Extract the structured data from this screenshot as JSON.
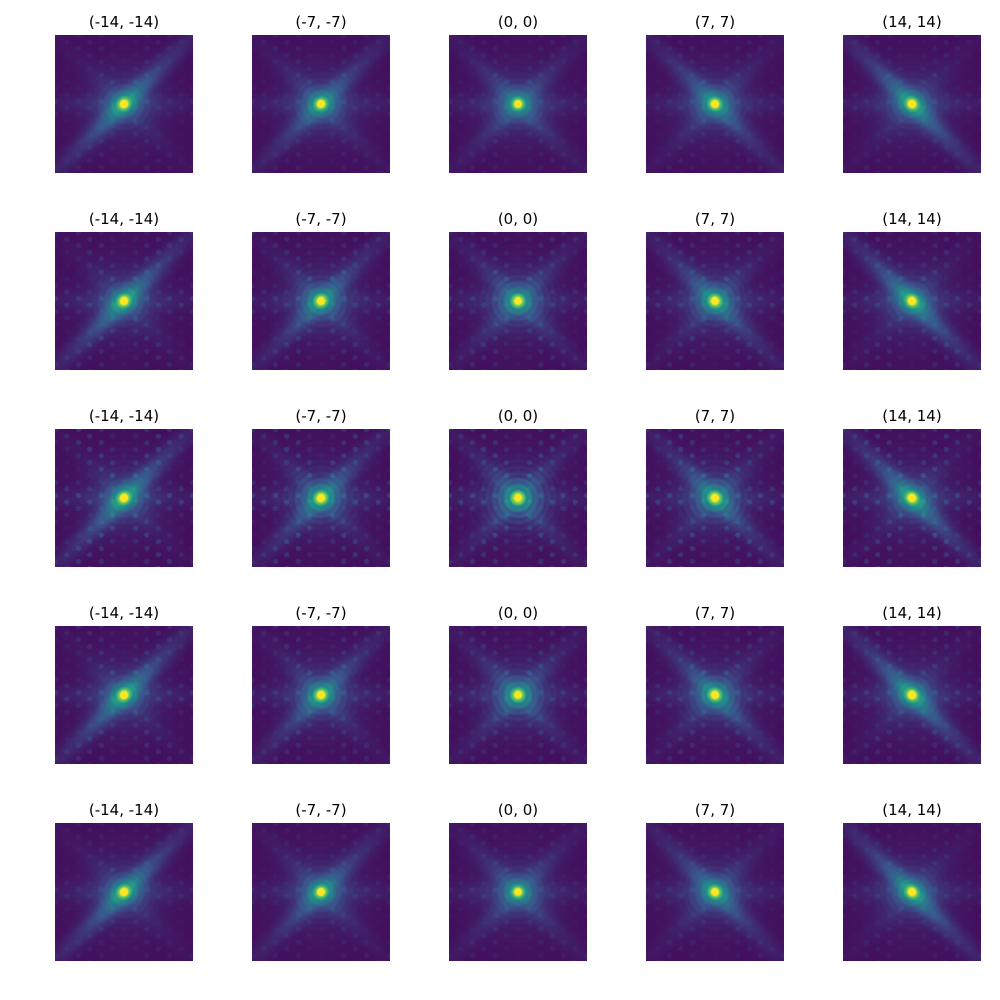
{
  "figure": {
    "rows": 5,
    "cols": 5,
    "colormap": "viridis",
    "colors": {
      "background": "#ffffff",
      "low": "#440154",
      "low_mid": "#3b528b",
      "mid": "#21918c",
      "high_mid": "#5ec962",
      "high": "#fde725"
    },
    "panels": [
      {
        "title": "(-14, -14)",
        "offset": [
          -14,
          -14
        ]
      },
      {
        "title": "(-7, -7)",
        "offset": [
          -7,
          -7
        ]
      },
      {
        "title": "(0, 0)",
        "offset": [
          0,
          0
        ]
      },
      {
        "title": "(7, 7)",
        "offset": [
          7,
          7
        ]
      },
      {
        "title": "(14, 14)",
        "offset": [
          14,
          14
        ]
      },
      {
        "title": "(-14, -14)",
        "offset": [
          -14,
          -14
        ]
      },
      {
        "title": "(-7, -7)",
        "offset": [
          -7,
          -7
        ]
      },
      {
        "title": "(0, 0)",
        "offset": [
          0,
          0
        ]
      },
      {
        "title": "(7, 7)",
        "offset": [
          7,
          7
        ]
      },
      {
        "title": "(14, 14)",
        "offset": [
          14,
          14
        ]
      },
      {
        "title": "(-14, -14)",
        "offset": [
          -14,
          -14
        ]
      },
      {
        "title": "(-7, -7)",
        "offset": [
          -7,
          -7
        ]
      },
      {
        "title": "(0, 0)",
        "offset": [
          0,
          0
        ]
      },
      {
        "title": "(7, 7)",
        "offset": [
          7,
          7
        ]
      },
      {
        "title": "(14, 14)",
        "offset": [
          14,
          14
        ]
      },
      {
        "title": "(-14, -14)",
        "offset": [
          -14,
          -14
        ]
      },
      {
        "title": "(-7, -7)",
        "offset": [
          -7,
          -7
        ]
      },
      {
        "title": "(0, 0)",
        "offset": [
          0,
          0
        ]
      },
      {
        "title": "(7, 7)",
        "offset": [
          7,
          7
        ]
      },
      {
        "title": "(14, 14)",
        "offset": [
          14,
          14
        ]
      },
      {
        "title": "(-14, -14)",
        "offset": [
          -14,
          -14
        ]
      },
      {
        "title": "(-7, -7)",
        "offset": [
          -7,
          -7
        ]
      },
      {
        "title": "(0, 0)",
        "offset": [
          0,
          0
        ]
      },
      {
        "title": "(7, 7)",
        "offset": [
          7,
          7
        ]
      },
      {
        "title": "(14, 14)",
        "offset": [
          14,
          14
        ]
      }
    ]
  }
}
